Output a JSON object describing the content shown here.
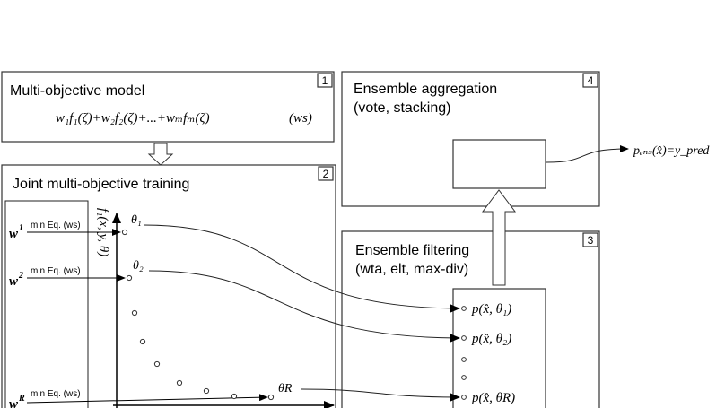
{
  "box1": {
    "number": "1",
    "title": "Multi-objective model",
    "formula": "w₁f₁(ζ)+w₂f₂(ζ)+...+wₘfₘ(ζ)",
    "tag": "(ws)"
  },
  "box2": {
    "number": "2",
    "title": "Joint multi-objective training",
    "weights": [
      {
        "label": "w",
        "sup": "1",
        "caption": "min Eq. (ws)"
      },
      {
        "label": "w",
        "sup": "2",
        "caption": "min Eq. (ws)"
      },
      {
        "label": "w",
        "sup": "R",
        "caption": "min Eq. (ws)"
      }
    ],
    "axis_label": "f₁(x, y, θ)",
    "thetas": [
      "θ₁",
      "θ₂",
      "θR"
    ]
  },
  "box3": {
    "number": "3",
    "title_line1": "Ensemble filtering",
    "title_line2": "(wta, elt, max-div)",
    "outputs": [
      "p(x̂, θ₁)",
      "p(x̂, θ₂)",
      "p(x̂, θR)"
    ]
  },
  "box4": {
    "number": "4",
    "title_line1": "Ensemble aggregation",
    "title_line2": "(vote, stacking)"
  },
  "output_label": "pₑₙₛ(x̂)=y_pred"
}
